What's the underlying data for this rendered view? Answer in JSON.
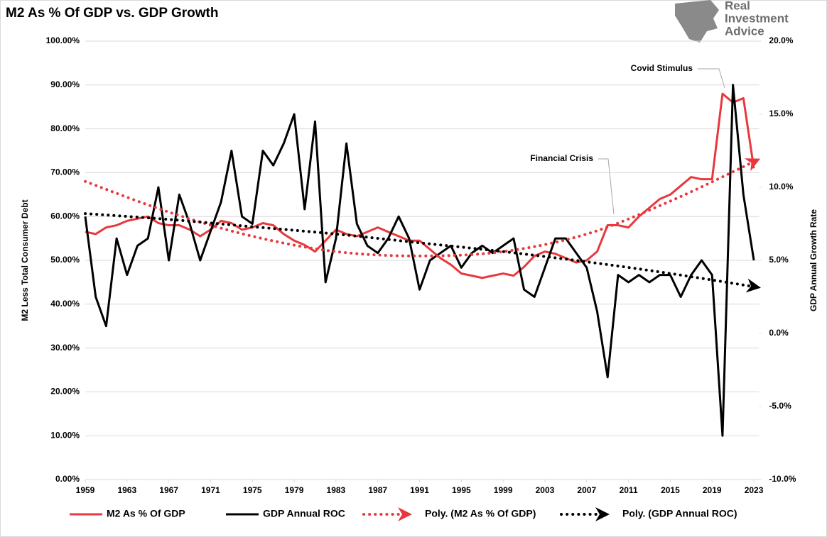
{
  "chart_data": {
    "type": "line",
    "title": "M2 As % Of GDP vs. GDP Growth",
    "ylabel": "M2 Less Total Consumer Debt",
    "y2label": "GDP Annual Growth Rate",
    "x": [
      1959,
      1960,
      1961,
      1962,
      1963,
      1964,
      1965,
      1966,
      1967,
      1968,
      1969,
      1970,
      1971,
      1972,
      1973,
      1974,
      1975,
      1976,
      1977,
      1978,
      1979,
      1980,
      1981,
      1982,
      1983,
      1984,
      1985,
      1986,
      1987,
      1988,
      1989,
      1990,
      1991,
      1992,
      1993,
      1994,
      1995,
      1996,
      1997,
      1998,
      1999,
      2000,
      2001,
      2002,
      2003,
      2004,
      2005,
      2006,
      2007,
      2008,
      2009,
      2010,
      2011,
      2012,
      2013,
      2014,
      2015,
      2016,
      2017,
      2018,
      2019,
      2020,
      2021,
      2022,
      2023
    ],
    "xlim": [
      1959,
      2023.5
    ],
    "xticks": [
      1959,
      1963,
      1967,
      1971,
      1975,
      1979,
      1983,
      1987,
      1991,
      1995,
      1999,
      2003,
      2007,
      2011,
      2015,
      2019,
      2023
    ],
    "ylim": [
      0,
      100
    ],
    "yticks": [
      {
        "value": 0,
        "label": "0.00%"
      },
      {
        "value": 10,
        "label": "10.00%"
      },
      {
        "value": 20,
        "label": "20.00%"
      },
      {
        "value": 30,
        "label": "30.00%"
      },
      {
        "value": 40,
        "label": "40.00%"
      },
      {
        "value": 50,
        "label": "50.00%"
      },
      {
        "value": 60,
        "label": "60.00%"
      },
      {
        "value": 70,
        "label": "70.00%"
      },
      {
        "value": 80,
        "label": "80.00%"
      },
      {
        "value": 90,
        "label": "90.00%"
      },
      {
        "value": 100,
        "label": "100.00%"
      }
    ],
    "y2lim": [
      -10,
      20
    ],
    "y2ticks": [
      {
        "value": -10,
        "label": "-10.0%"
      },
      {
        "value": -5,
        "label": "-5.0%"
      },
      {
        "value": 0,
        "label": "0.0%"
      },
      {
        "value": 5,
        "label": "5.0%"
      },
      {
        "value": 10,
        "label": "10.0%"
      },
      {
        "value": 15,
        "label": "15.0%"
      },
      {
        "value": 20,
        "label": "20.0%"
      }
    ],
    "grid": true,
    "series": [
      {
        "name": "M2 As % Of GDP",
        "color": "#e8383d",
        "style": "solid",
        "values": [
          56.5,
          56,
          57.5,
          58,
          59,
          59.5,
          60,
          58.5,
          58,
          58,
          57,
          55.5,
          57,
          59,
          58.5,
          57,
          57.5,
          58.5,
          58,
          56,
          54.5,
          53.5,
          52,
          54.5,
          57,
          56,
          55.5,
          56.5,
          57.5,
          56.5,
          55.5,
          54.5,
          54.5,
          52.5,
          50.5,
          49,
          47,
          46.5,
          46,
          46.5,
          47,
          46.5,
          48.5,
          51,
          52,
          51.5,
          50.5,
          49.5,
          50,
          52,
          58,
          58,
          57.5,
          60,
          62,
          64,
          65,
          67,
          69,
          68.5,
          68.5,
          88,
          86,
          87,
          71
        ]
      },
      {
        "name": "GDP Annual ROC",
        "color": "#000000",
        "style": "solid",
        "axis": "y2",
        "values": [
          8,
          2.5,
          0.5,
          6.5,
          4,
          6,
          6.5,
          10,
          5,
          9.5,
          7.5,
          5,
          7,
          9,
          12.5,
          8,
          7.5,
          12.5,
          11.5,
          13,
          15,
          8.5,
          14.5,
          3.5,
          6.5,
          13,
          7.5,
          6,
          5.5,
          6.5,
          8,
          6.5,
          3,
          5,
          5.5,
          6,
          4.5,
          5.5,
          6,
          5.5,
          6,
          6.5,
          3,
          2.5,
          4.5,
          6.5,
          6.5,
          5.5,
          4.5,
          1.5,
          -3,
          4,
          3.5,
          4,
          3.5,
          4,
          4,
          2.5,
          4,
          5,
          4,
          -7,
          17,
          9.5,
          5
        ]
      },
      {
        "name": "Poly. (M2 As % Of GDP)",
        "color": "#e8383d",
        "style": "dotted",
        "x": [
          1959,
          1967,
          1975,
          1983,
          1991,
          1999,
          2007,
          2015,
          2023
        ],
        "values": [
          68,
          61,
          55.5,
          52,
          51,
          52,
          56,
          63.5,
          72.5
        ]
      },
      {
        "name": "Poly. (GDP Annual ROC)",
        "color": "#000000",
        "style": "dotted",
        "axis": "y2",
        "x": [
          1959,
          1967,
          1975,
          1983,
          1991,
          1999,
          2007,
          2015,
          2023
        ],
        "values": [
          8.2,
          7.8,
          7.3,
          6.8,
          6.2,
          5.6,
          4.9,
          4.1,
          3.2
        ]
      }
    ],
    "annotations": [
      {
        "text": "Covid Stimulus"
      },
      {
        "text": "Financial Crisis"
      }
    ]
  },
  "logo": {
    "lines": [
      "Real",
      "Investment",
      "Advice"
    ]
  }
}
